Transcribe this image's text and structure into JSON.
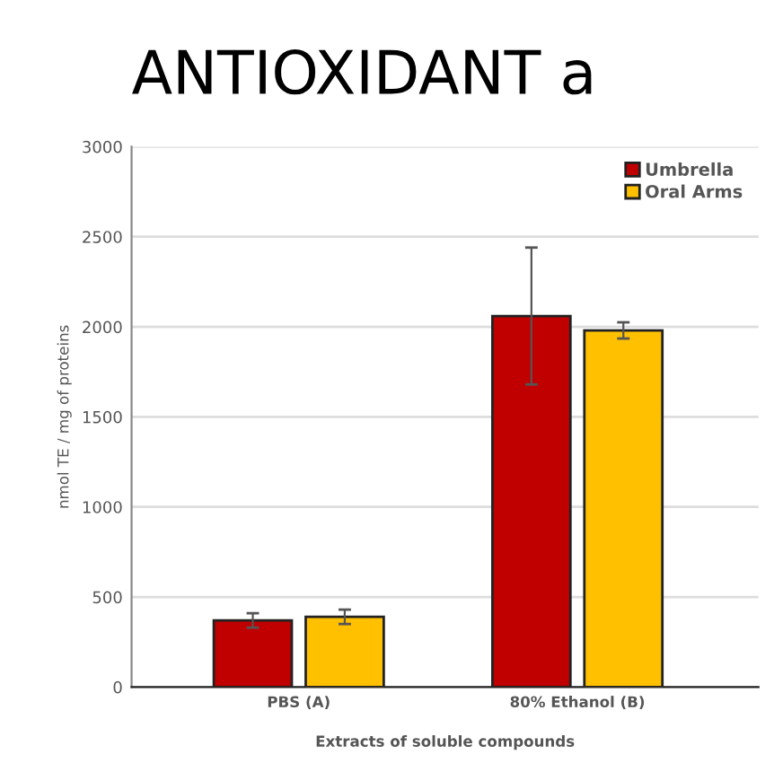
{
  "chart_data": {
    "type": "bar",
    "title": "ANTIOXIDANT a",
    "xlabel": "Extracts of soluble compounds",
    "ylabel": "nmol TE / mg of proteins",
    "categories": [
      "PBS (A)",
      "80% Ethanol (B)"
    ],
    "series": [
      {
        "name": "Umbrella",
        "color": "#c00000",
        "values": [
          370,
          2060
        ],
        "errors": [
          40,
          380
        ]
      },
      {
        "name": "Oral Arms",
        "color": "#ffc000",
        "values": [
          390,
          1980
        ],
        "errors": [
          40,
          45
        ]
      }
    ],
    "ylim": [
      0,
      3000
    ],
    "yticks": [
      0,
      500,
      1000,
      1500,
      2000,
      2500,
      3000
    ],
    "grid": "y",
    "legend": "top right"
  }
}
